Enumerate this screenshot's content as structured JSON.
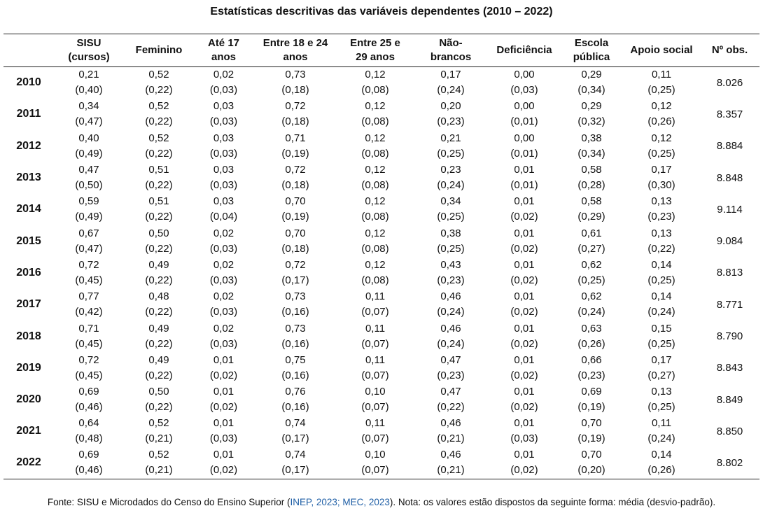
{
  "title": "Estatísticas descritivas das variáveis dependentes (2010 – 2022)",
  "columns": [
    [
      "",
      ""
    ],
    [
      "SISU",
      "(cursos)"
    ],
    [
      "Feminino",
      ""
    ],
    [
      "Até 17",
      "anos"
    ],
    [
      "Entre 18 e 24",
      "anos"
    ],
    [
      "Entre 25 e",
      "29 anos"
    ],
    [
      "Não-",
      "brancos"
    ],
    [
      "Deficiência",
      ""
    ],
    [
      "Escola",
      "pública"
    ],
    [
      "Apoio social",
      ""
    ],
    [
      "Nº obs.",
      ""
    ]
  ],
  "rows": [
    {
      "year": "2010",
      "means": [
        "0,21",
        "0,52",
        "0,02",
        "0,73",
        "0,12",
        "0,17",
        "0,00",
        "0,29",
        "0,11"
      ],
      "sds": [
        "(0,40)",
        "(0,22)",
        "(0,03)",
        "(0,18)",
        "(0,08)",
        "(0,24)",
        "(0,03)",
        "(0,34)",
        "(0,25)"
      ],
      "obs": "8.026"
    },
    {
      "year": "2011",
      "means": [
        "0,34",
        "0,52",
        "0,03",
        "0,72",
        "0,12",
        "0,20",
        "0,00",
        "0,29",
        "0,12"
      ],
      "sds": [
        "(0,47)",
        "(0,22)",
        "(0,03)",
        "(0,18)",
        "(0,08)",
        "(0,23)",
        "(0,01)",
        "(0,32)",
        "(0,26)"
      ],
      "obs": "8.357"
    },
    {
      "year": "2012",
      "means": [
        "0,40",
        "0,52",
        "0,03",
        "0,71",
        "0,12",
        "0,21",
        "0,00",
        "0,38",
        "0,12"
      ],
      "sds": [
        "(0,49)",
        "(0,22)",
        "(0,03)",
        "(0,19)",
        "(0,08)",
        "(0,25)",
        "(0,01)",
        "(0,34)",
        "(0,25)"
      ],
      "obs": "8.884"
    },
    {
      "year": "2013",
      "means": [
        "0,47",
        "0,51",
        "0,03",
        "0,72",
        "0,12",
        "0,23",
        "0,01",
        "0,58",
        "0,17"
      ],
      "sds": [
        "(0,50)",
        "(0,22)",
        "(0,03)",
        "(0,18)",
        "(0,08)",
        "(0,24)",
        "(0,01)",
        "(0,28)",
        "(0,30)"
      ],
      "obs": "8.848"
    },
    {
      "year": "2014",
      "means": [
        "0,59",
        "0,51",
        "0,03",
        "0,70",
        "0,12",
        "0,34",
        "0,01",
        "0,58",
        "0,13"
      ],
      "sds": [
        "(0,49)",
        "(0,22)",
        "(0,04)",
        "(0,19)",
        "(0,08)",
        "(0,25)",
        "(0,02)",
        "(0,29)",
        "(0,23)"
      ],
      "obs": "9.114"
    },
    {
      "year": "2015",
      "means": [
        "0,67",
        "0,50",
        "0,02",
        "0,70",
        "0,12",
        "0,38",
        "0,01",
        "0,61",
        "0,13"
      ],
      "sds": [
        "(0,47)",
        "(0,22)",
        "(0,03)",
        "(0,18)",
        "(0,08)",
        "(0,25)",
        "(0,02)",
        "(0,27)",
        "(0,22)"
      ],
      "obs": "9.084"
    },
    {
      "year": "2016",
      "means": [
        "0,72",
        "0,49",
        "0,02",
        "0,72",
        "0,12",
        "0,43",
        "0,01",
        "0,62",
        "0,14"
      ],
      "sds": [
        "(0,45)",
        "(0,22)",
        "(0,03)",
        "(0,17)",
        "(0,08)",
        "(0,23)",
        "(0,02)",
        "(0,25)",
        "(0,25)"
      ],
      "obs": "8.813"
    },
    {
      "year": "2017",
      "means": [
        "0,77",
        "0,48",
        "0,02",
        "0,73",
        "0,11",
        "0,46",
        "0,01",
        "0,62",
        "0,14"
      ],
      "sds": [
        "(0,42)",
        "(0,22)",
        "(0,03)",
        "(0,16)",
        "(0,07)",
        "(0,24)",
        "(0,02)",
        "(0,24)",
        "(0,24)"
      ],
      "obs": "8.771"
    },
    {
      "year": "2018",
      "means": [
        "0,71",
        "0,49",
        "0,02",
        "0,73",
        "0,11",
        "0,46",
        "0,01",
        "0,63",
        "0,15"
      ],
      "sds": [
        "(0,45)",
        "(0,22)",
        "(0,03)",
        "(0,16)",
        "(0,07)",
        "(0,24)",
        "(0,02)",
        "(0,26)",
        "(0,25)"
      ],
      "obs": "8.790"
    },
    {
      "year": "2019",
      "means": [
        "0,72",
        "0,49",
        "0,01",
        "0,75",
        "0,11",
        "0,47",
        "0,01",
        "0,66",
        "0,17"
      ],
      "sds": [
        "(0,45)",
        "(0,22)",
        "(0,02)",
        "(0,16)",
        "(0,07)",
        "(0,23)",
        "(0,02)",
        "(0,23)",
        "(0,27)"
      ],
      "obs": "8.843"
    },
    {
      "year": "2020",
      "means": [
        "0,69",
        "0,50",
        "0,01",
        "0,76",
        "0,10",
        "0,47",
        "0,01",
        "0,69",
        "0,13"
      ],
      "sds": [
        "(0,46)",
        "(0,22)",
        "(0,02)",
        "(0,16)",
        "(0,07)",
        "(0,22)",
        "(0,02)",
        "(0,19)",
        "(0,25)"
      ],
      "obs": "8.849"
    },
    {
      "year": "2021",
      "means": [
        "0,64",
        "0,52",
        "0,01",
        "0,74",
        "0,11",
        "0,46",
        "0,01",
        "0,70",
        "0,11"
      ],
      "sds": [
        "(0,48)",
        "(0,21)",
        "(0,03)",
        "(0,17)",
        "(0,07)",
        "(0,21)",
        "(0,03)",
        "(0,19)",
        "(0,24)"
      ],
      "obs": "8.850"
    },
    {
      "year": "2022",
      "means": [
        "0,69",
        "0,52",
        "0,01",
        "0,74",
        "0,10",
        "0,46",
        "0,01",
        "0,70",
        "0,14"
      ],
      "sds": [
        "(0,46)",
        "(0,21)",
        "(0,02)",
        "(0,17)",
        "(0,07)",
        "(0,21)",
        "(0,02)",
        "(0,20)",
        "(0,26)"
      ],
      "obs": "8.802"
    }
  ],
  "source": {
    "prefix": "Fonte: SISU e Microdados do Censo do Ensino Superior (",
    "refs": "INEP, 2023; MEC, 2023",
    "suffix": "). Nota: os valores estão dispostos da seguinte forma: média (desvio-padrão)."
  }
}
